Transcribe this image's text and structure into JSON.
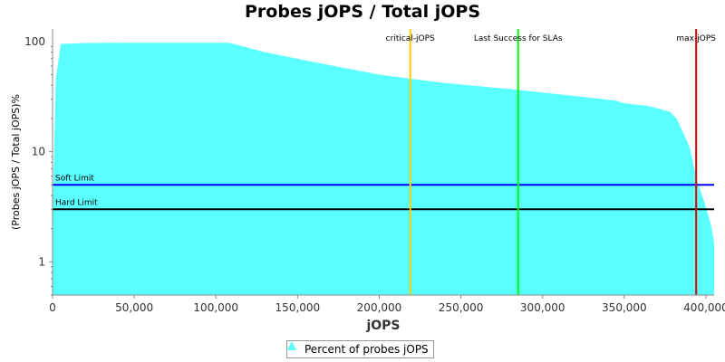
{
  "chart_data": {
    "type": "area",
    "title": "Probes jOPS / Total jOPS",
    "xlabel": "jOPS",
    "ylabel": "(Probes jOPS / Total jOPS)%",
    "xlim": [
      0,
      405000
    ],
    "ylim": [
      0.5,
      130
    ],
    "y_scale": "log",
    "x_ticks": [
      0,
      50000,
      100000,
      150000,
      200000,
      250000,
      300000,
      350000,
      400000
    ],
    "x_tick_labels": [
      "0",
      "50,000",
      "100,000",
      "150,000",
      "200,000",
      "250,000",
      "300,000",
      "350,000",
      "400,000"
    ],
    "y_ticks": [
      1,
      10,
      100
    ],
    "y_tick_labels": [
      "1",
      "10",
      "100"
    ],
    "series": [
      {
        "name": "Percent of probes jOPS",
        "color": "#5AFFFF",
        "x": [
          0,
          2000,
          5000,
          20000,
          50000,
          108000,
          130000,
          160000,
          200000,
          240000,
          280000,
          320000,
          345000,
          350000,
          365000,
          378000,
          382000,
          386000,
          390000,
          393000,
          395000,
          399000,
          403000,
          405000
        ],
        "y": [
          2.5,
          45,
          95,
          97,
          97.5,
          97.5,
          80,
          65,
          50,
          42,
          37,
          32,
          29,
          27.5,
          26,
          23,
          20,
          15,
          11,
          7,
          5.2,
          3.5,
          2.2,
          1.5
        ]
      }
    ],
    "vertical_markers": [
      {
        "label": "critical-jOPS",
        "x": 219000,
        "color": "#FFCC00"
      },
      {
        "label": "Last Success for SLAs",
        "x": 285000,
        "color": "#00FF00"
      },
      {
        "label": "max-jOPS",
        "x": 394000,
        "color": "#DD0000"
      }
    ],
    "horizontal_lines": [
      {
        "label": "Soft Limit",
        "y": 5,
        "color": "#0000FF"
      },
      {
        "label": "Hard Limit",
        "y": 3,
        "color": "#000000"
      }
    ],
    "legend": {
      "position": "bottom",
      "entries": [
        "Percent of probes jOPS"
      ]
    },
    "grid": false
  }
}
